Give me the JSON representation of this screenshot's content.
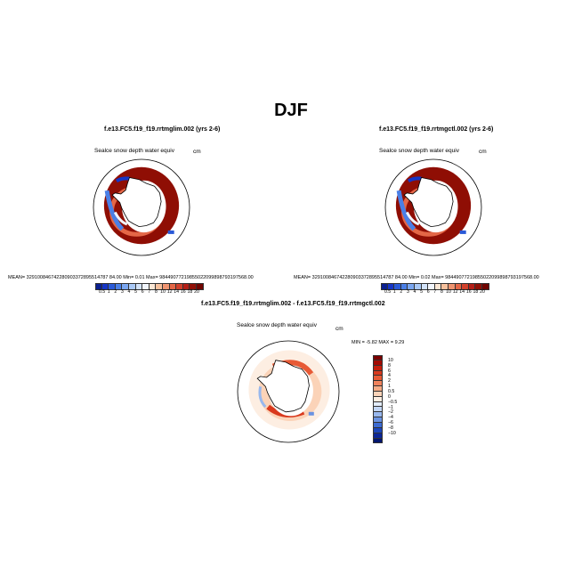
{
  "page": {
    "title": "DJF"
  },
  "panels": [
    {
      "title": "f.e13.FC5.f19_f19.rrtmglim.002 (yrs 2-6)",
      "subtitle": "Sealce snow depth water equiv",
      "units": "cm",
      "stats": "MEAN= 329100846742280903372895514787 84.00    Min=     0.01    Max=  98449077219855022099898793197568.00"
    },
    {
      "title": "f.e13.FC5.f19_f19.rrtmgctl.002 (yrs 2-6)",
      "subtitle": "Sealce snow depth water equiv",
      "units": "cm",
      "stats": "MEAN= 329100846742280903372895514787 84.00    Min=     0.02    Max=  98449077219855022099898793197568.00"
    },
    {
      "title": "f.e13.FC5.f19_f19.rrtmglim.002 - f.e13.FC5.f19_f19.rrtmgctl.002",
      "subtitle": "Sealce snow depth water equiv",
      "units": "cm",
      "stats": "MIN =   -5.82  MAX =    9.29"
    }
  ],
  "colorbar_abs": {
    "labels": [
      "0.5",
      "1",
      "2",
      "3",
      "4",
      "5",
      "6",
      "7",
      "8",
      "10",
      "12",
      "14",
      "16",
      "18",
      "20"
    ],
    "colors": [
      "#0a1f8f",
      "#1535c6",
      "#2a5ad8",
      "#4a7fe6",
      "#7aa6f0",
      "#a9c8f6",
      "#d2e2fa",
      "#f1f5fd",
      "#fbe6d4",
      "#f6c09c",
      "#ef9470",
      "#e46747",
      "#d1412c",
      "#b41f17",
      "#911006",
      "#700500"
    ]
  },
  "colorbar_diff": {
    "labels": [
      "10",
      "8",
      "6",
      "4",
      "2",
      "1",
      "0.5",
      "0",
      "−0.5",
      "−1",
      "−2",
      "−4",
      "−6",
      "−8",
      "−10"
    ],
    "colors": [
      "#7a0000",
      "#a30a02",
      "#c41e0c",
      "#d9391d",
      "#e75a36",
      "#f0825c",
      "#f6ab86",
      "#fbd3b8",
      "#fdeee2",
      "#e2ecfa",
      "#c2d6f5",
      "#98b8ee",
      "#6a93e2",
      "#3d6bd2",
      "#1c46bb",
      "#0c2698",
      "#03166f"
    ]
  },
  "chart_data": [
    {
      "type": "heatmap",
      "projection": "south-polar-stereographic",
      "title": "f.e13.FC5.f19_f19.rrtmglim.002 (yrs 2-6)",
      "variable": "Sealce snow depth water equiv",
      "units": "cm",
      "min": 0.01,
      "max": 9.844907721985502e+31,
      "mean": 3.291008467422809e+31,
      "color_levels": [
        0.5,
        1,
        2,
        3,
        4,
        5,
        6,
        7,
        8,
        10,
        12,
        14,
        16,
        18,
        20
      ]
    },
    {
      "type": "heatmap",
      "projection": "south-polar-stereographic",
      "title": "f.e13.FC5.f19_f19.rrtmgctl.002 (yrs 2-6)",
      "variable": "Sealce snow depth water equiv",
      "units": "cm",
      "min": 0.02,
      "max": 9.844907721985502e+31,
      "mean": 3.291008467422809e+31,
      "color_levels": [
        0.5,
        1,
        2,
        3,
        4,
        5,
        6,
        7,
        8,
        10,
        12,
        14,
        16,
        18,
        20
      ]
    },
    {
      "type": "heatmap",
      "projection": "south-polar-stereographic",
      "title": "f.e13.FC5.f19_f19.rrtmglim.002 - f.e13.FC5.f19_f19.rrtmgctl.002",
      "variable": "Sealce snow depth water equiv",
      "units": "cm",
      "min": -5.82,
      "max": 9.29,
      "color_levels": [
        10,
        8,
        6,
        4,
        2,
        1,
        0.5,
        0,
        -0.5,
        -1,
        -2,
        -4,
        -6,
        -8,
        -10
      ]
    }
  ]
}
